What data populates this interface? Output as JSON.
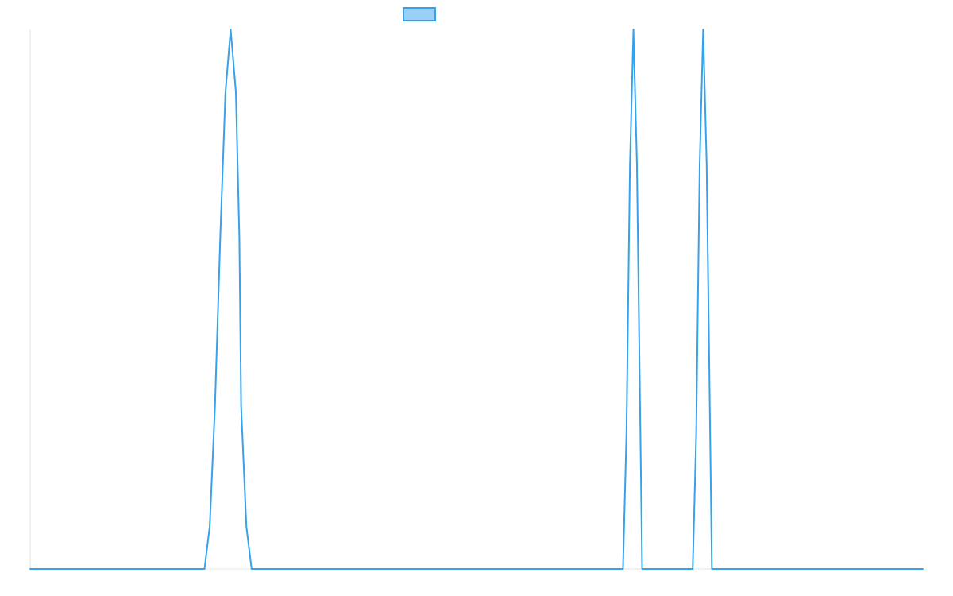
{
  "chart_data": {
    "type": "line",
    "title": "",
    "xlabel": "",
    "ylabel": "",
    "grid": false,
    "legend": {
      "placement": "top-center",
      "entries": [
        {
          "name": ""
        }
      ]
    },
    "colors": {
      "line": "#36a2eb",
      "legend_fill": "#9ad0f5",
      "axis": "#e5e5e5"
    },
    "xlim": [
      0,
      1024
    ],
    "ylim": [
      0,
      1
    ],
    "series": [
      {
        "name": "",
        "color": "#36a2eb",
        "x": [
          0,
          200,
          206,
          212,
          218,
          224,
          230,
          236,
          240,
          242,
          248,
          254,
          260,
          266,
          272,
          278,
          284,
          290,
          296,
          300,
          680,
          684,
          688,
          692,
          696,
          700,
          702,
          704,
          708,
          712,
          716,
          720,
          724,
          760,
          764,
          768,
          772,
          776,
          780,
          782,
          784,
          788,
          792,
          796,
          800,
          804,
          1024
        ],
        "y": [
          0,
          0,
          0.0794,
          0.3017,
          0.6113,
          0.883,
          1.0,
          0.883,
          0.6113,
          0.3017,
          0.0794,
          0,
          0,
          0,
          0,
          0,
          0,
          0,
          0,
          0,
          0,
          0.25,
          0.75,
          1.0,
          0.75,
          0.25,
          0,
          0,
          0,
          0,
          0,
          0,
          0,
          0,
          0.25,
          0.75,
          1.0,
          0.75,
          0.25,
          0,
          0,
          0,
          0,
          0,
          0,
          0,
          0
        ]
      }
    ]
  }
}
